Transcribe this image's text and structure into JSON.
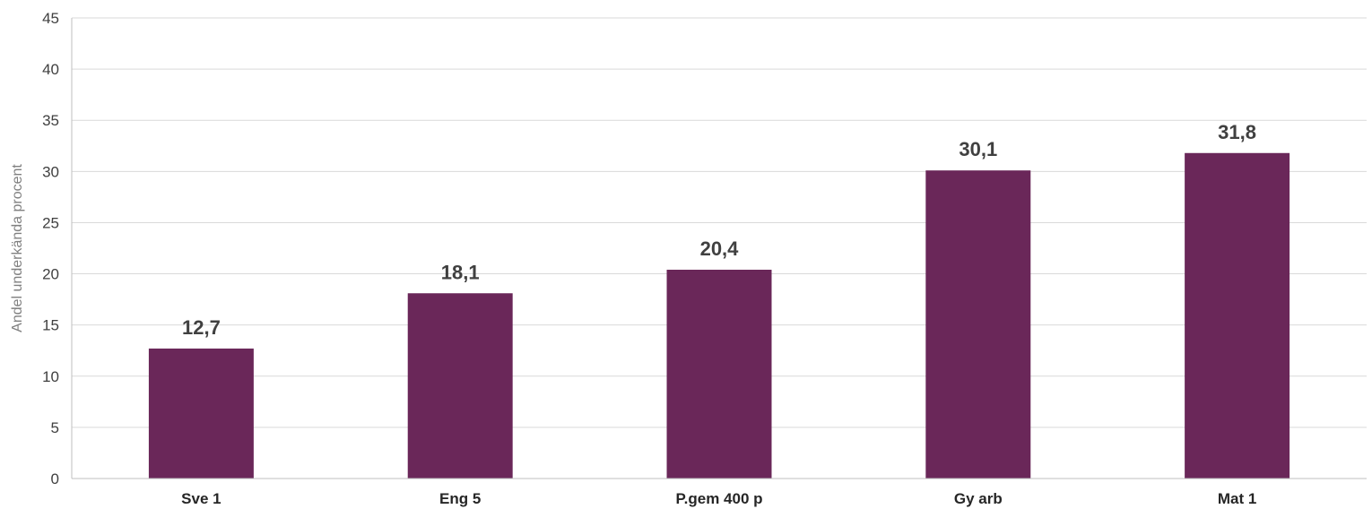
{
  "chart_data": {
    "type": "bar",
    "title": "",
    "xlabel": "",
    "ylabel": "Andel underkända procent",
    "categories": [
      "Sve 1",
      "Eng 5",
      "P.gem 400 p",
      "Gy arb",
      "Mat 1"
    ],
    "values": [
      12.7,
      18.1,
      20.4,
      30.1,
      31.8
    ],
    "data_labels": [
      "12,7",
      "18,1",
      "20,4",
      "30,1",
      "31,8"
    ],
    "ylim": [
      0,
      45
    ],
    "yticks": [
      0,
      5,
      10,
      15,
      20,
      25,
      30,
      35,
      40,
      45
    ],
    "grid": true,
    "legend": "none",
    "bar_color": "#6a2759"
  }
}
